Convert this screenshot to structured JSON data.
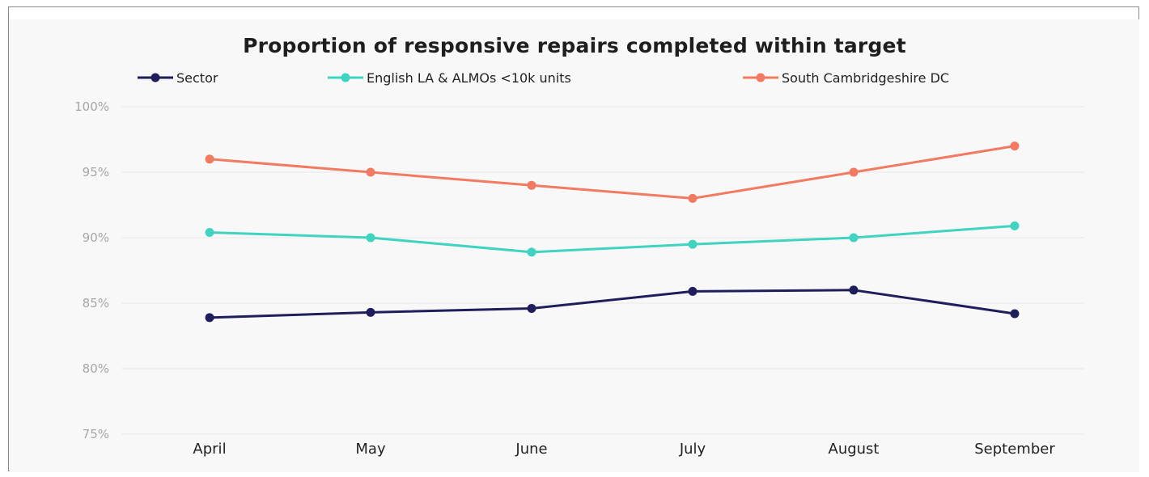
{
  "chart_data": {
    "type": "line",
    "title": "Proportion of responsive repairs completed within target",
    "xlabel": "",
    "ylabel": "",
    "categories": [
      "April",
      "May",
      "June",
      "July",
      "August",
      "September"
    ],
    "yticks": [
      "100%",
      "95%",
      "90%",
      "85%",
      "80%",
      "75%"
    ],
    "ylim": [
      75,
      100
    ],
    "grid": true,
    "legend_position": "top",
    "series": [
      {
        "name": "Sector",
        "color": "#1f1d5c",
        "values": [
          83.9,
          84.3,
          84.6,
          85.9,
          86.0,
          84.2
        ]
      },
      {
        "name": "English LA & ALMOs <10k units",
        "color": "#3fd3c0",
        "values": [
          90.4,
          90.0,
          88.9,
          89.5,
          90.0,
          90.9
        ]
      },
      {
        "name": "South Cambridgeshire DC",
        "color": "#f27a61",
        "values": [
          96.0,
          95.0,
          94.0,
          93.0,
          95.0,
          97.0
        ]
      }
    ]
  }
}
